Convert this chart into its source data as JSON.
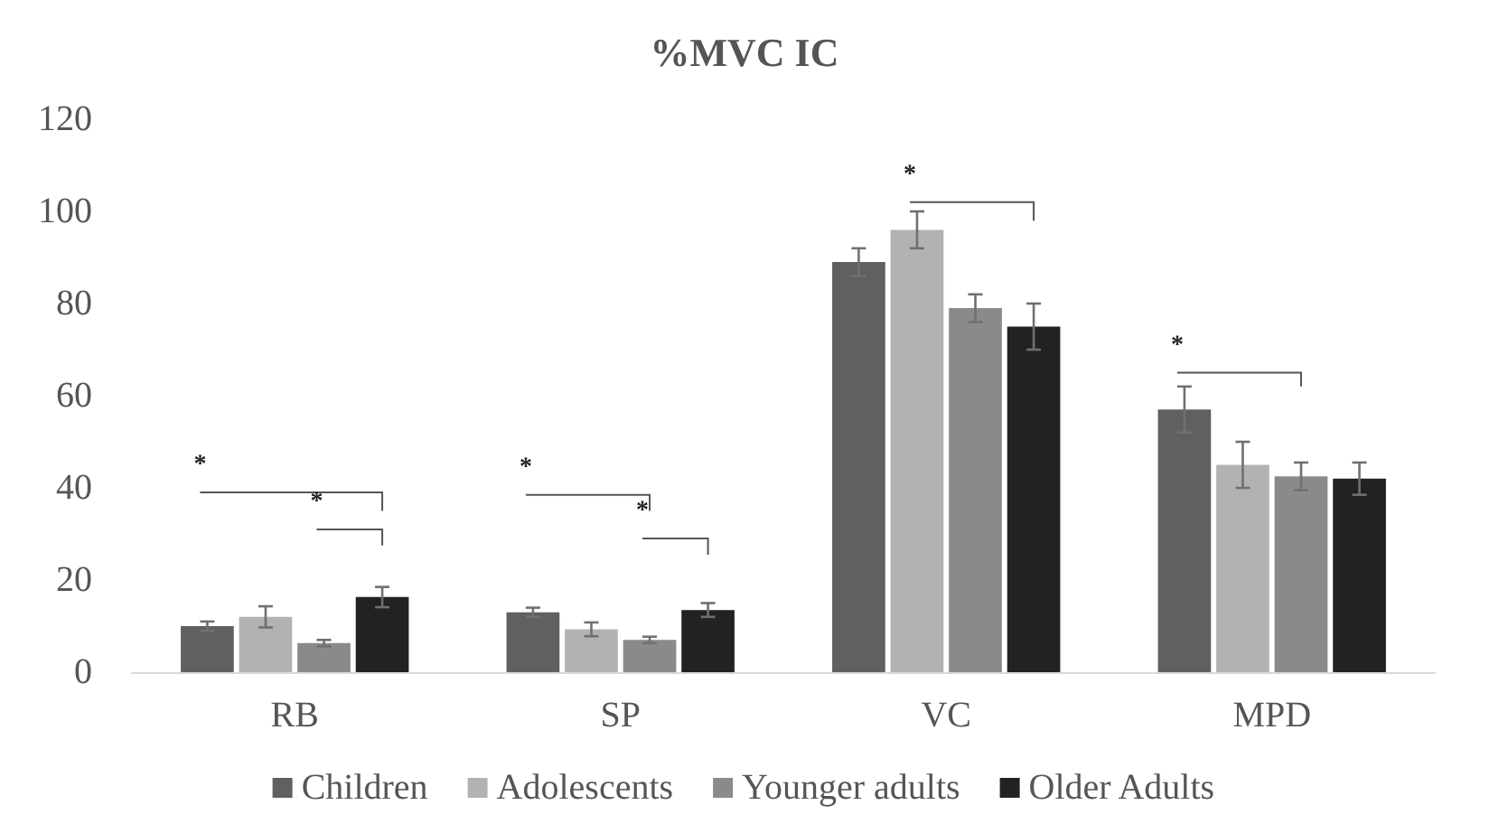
{
  "chart_data": {
    "type": "bar",
    "title": "%MVC IC",
    "categories": [
      "RB",
      "SP",
      "VC",
      "MPD"
    ],
    "series": [
      {
        "name": "Children",
        "color": "#606060",
        "values": [
          10,
          13,
          89,
          57
        ],
        "errors": [
          1,
          1,
          3,
          5
        ]
      },
      {
        "name": "Adolescents",
        "color": "#b2b2b2",
        "values": [
          12,
          9.3,
          96,
          45
        ],
        "errors": [
          2.3,
          1.5,
          4,
          5
        ]
      },
      {
        "name": "Younger adults",
        "color": "#8a8a8a",
        "values": [
          6.3,
          7,
          79,
          42.5
        ],
        "errors": [
          0.7,
          0.7,
          3,
          3
        ]
      },
      {
        "name": "Older Adults",
        "color": "#222222",
        "values": [
          16.3,
          13.5,
          75,
          42
        ],
        "errors": [
          2.2,
          1.5,
          5,
          3.5
        ]
      }
    ],
    "ylim": [
      0,
      120
    ],
    "yticks": [
      0,
      20,
      40,
      60,
      80,
      100,
      120
    ],
    "grid": false,
    "legend": "bottom",
    "annotations": [
      "*",
      "*",
      "*",
      "*",
      "*",
      "*"
    ]
  }
}
